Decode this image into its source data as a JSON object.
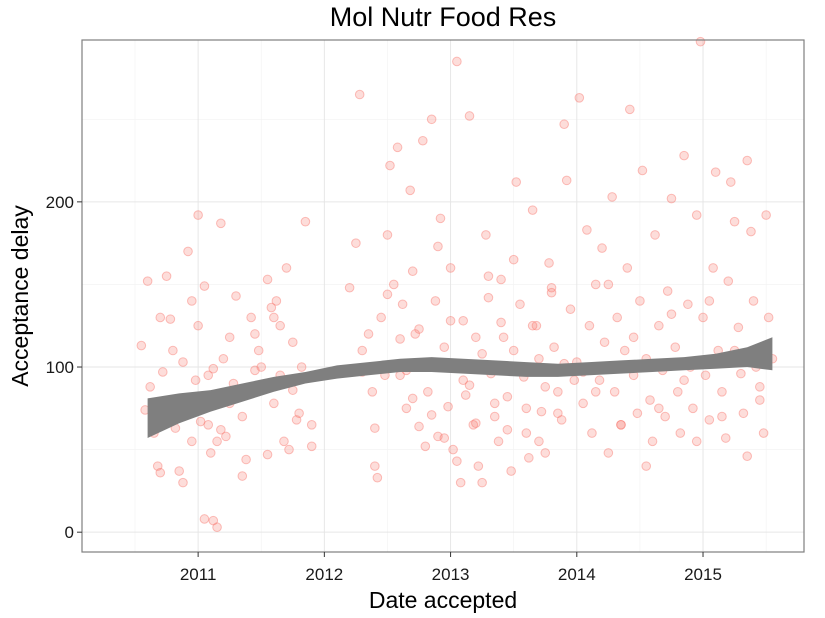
{
  "chart_data": {
    "type": "scatter",
    "title": "Mol Nutr Food Res",
    "xlabel": "Date accepted",
    "ylabel": "Acceptance delay",
    "x_ticks": [
      "2011",
      "2012",
      "2013",
      "2014",
      "2015"
    ],
    "x_tick_values": [
      2011,
      2012,
      2013,
      2014,
      2015
    ],
    "y_ticks": [
      "0",
      "100",
      "200"
    ],
    "y_tick_values": [
      0,
      100,
      200
    ],
    "xlim": [
      2010.08,
      2015.8
    ],
    "ylim": [
      -12,
      298
    ],
    "grid": true,
    "point_color": "#f8766d",
    "point_opacity": 0.25,
    "smooth_color": "#7f7f7f",
    "smooth": {
      "x": [
        2010.6,
        2010.85,
        2011.1,
        2011.35,
        2011.6,
        2011.85,
        2012.1,
        2012.35,
        2012.6,
        2012.85,
        2013.1,
        2013.35,
        2013.6,
        2013.85,
        2014.1,
        2014.35,
        2014.6,
        2014.85,
        2015.1,
        2015.35,
        2015.55
      ],
      "fit": [
        72,
        76,
        80,
        85,
        90,
        94,
        97,
        99,
        101,
        102,
        101,
        99,
        98,
        98,
        99,
        100,
        101,
        102,
        104,
        106,
        108
      ],
      "lower": [
        57,
        66,
        73,
        79,
        85,
        90,
        93,
        95,
        97,
        97,
        96,
        95,
        94,
        94,
        95,
        96,
        97,
        98,
        99,
        100,
        98
      ],
      "upper": [
        81,
        84,
        86,
        90,
        94,
        97,
        101,
        103,
        105,
        106,
        105,
        104,
        103,
        102,
        103,
        104,
        105,
        106,
        108,
        112,
        118
      ]
    },
    "series": [
      {
        "x": [
          2010.55,
          2010.6,
          2010.62,
          2010.65,
          2010.7,
          2010.72,
          2010.75,
          2010.8,
          2010.82,
          2010.85,
          2010.9,
          2010.92,
          2010.95,
          2010.98,
          2011.0,
          2011.05,
          2011.08,
          2011.12,
          2011.15,
          2011.18,
          2011.2,
          2011.25,
          2011.28,
          2011.3,
          2011.35,
          2011.4,
          2011.42,
          2011.45,
          2011.5,
          2011.55,
          2011.6,
          2011.62,
          2011.65,
          2011.7,
          2011.75,
          2011.8,
          2011.85,
          2011.9,
          2010.58,
          2010.68,
          2010.78,
          2010.88,
          2011.02,
          2011.1,
          2011.22,
          2011.32,
          2011.48,
          2011.58,
          2011.68,
          2011.78,
          2010.88,
          2010.95,
          2011.05,
          2011.12,
          2011.15,
          2011.25,
          2011.35,
          2011.45,
          2011.55,
          2011.65,
          2011.72,
          2011.82,
          2011.0,
          2011.08,
          2011.18,
          2011.38,
          2011.6,
          2011.75,
          2011.9,
          2010.7
        ],
        "y": [
          113,
          152,
          88,
          60,
          130,
          97,
          155,
          110,
          63,
          37,
          80,
          170,
          140,
          92,
          125,
          149,
          65,
          99,
          55,
          187,
          105,
          118,
          90,
          143,
          70,
          85,
          130,
          120,
          100,
          153,
          78,
          140,
          95,
          160,
          115,
          72,
          188,
          65,
          74,
          40,
          129,
          103,
          67,
          48,
          58,
          84,
          110,
          136,
          55,
          68,
          30,
          55,
          8,
          7,
          3,
          78,
          34,
          98,
          47,
          125,
          50,
          100,
          192,
          95,
          62,
          44,
          130,
          86,
          52,
          36
        ]
      },
      {
        "x": [
          2012.2,
          2012.25,
          2012.28,
          2012.3,
          2012.35,
          2012.38,
          2012.4,
          2012.42,
          2012.45,
          2012.48,
          2012.5,
          2012.52,
          2012.55,
          2012.58,
          2012.6,
          2012.62,
          2012.65,
          2012.68,
          2012.7,
          2012.72,
          2012.75,
          2012.78,
          2012.8,
          2012.82,
          2012.85,
          2012.88,
          2012.9,
          2012.92,
          2012.95,
          2012.98,
          2013.0,
          2013.02,
          2013.05,
          2013.08,
          2013.1,
          2013.12,
          2013.15,
          2013.18,
          2013.2,
          2013.22,
          2013.25,
          2013.28,
          2013.3,
          2013.32,
          2013.35,
          2013.38,
          2013.4,
          2013.42,
          2013.45,
          2013.48,
          2013.5,
          2013.52,
          2013.55,
          2013.58,
          2013.6,
          2013.62,
          2013.65,
          2013.68,
          2013.7,
          2013.72,
          2013.75,
          2013.78,
          2013.8,
          2013.82,
          2013.85,
          2013.88,
          2013.9,
          2013.92,
          2013.95,
          2013.98,
          2012.3,
          2012.4,
          2012.5,
          2012.6,
          2012.7,
          2012.8,
          2012.9,
          2013.0,
          2013.1,
          2013.2,
          2013.3,
          2013.4,
          2013.5,
          2013.6,
          2013.7,
          2013.8,
          2013.9,
          2012.65,
          2012.75,
          2012.85,
          2012.95,
          2013.05,
          2013.15,
          2013.25,
          2013.35,
          2013.45,
          2013.55,
          2013.65,
          2013.75,
          2013.85
        ],
        "y": [
          148,
          175,
          265,
          110,
          120,
          85,
          40,
          33,
          130,
          95,
          180,
          222,
          150,
          233,
          95,
          138,
          75,
          207,
          158,
          120,
          64,
          237,
          100,
          85,
          250,
          140,
          58,
          190,
          112,
          76,
          160,
          50,
          285,
          30,
          128,
          83,
          252,
          65,
          118,
          40,
          30,
          180,
          142,
          96,
          70,
          55,
          153,
          118,
          82,
          37,
          165,
          212,
          138,
          94,
          60,
          45,
          195,
          125,
          105,
          73,
          48,
          163,
          148,
          112,
          85,
          68,
          247,
          213,
          135,
          92,
          97,
          63,
          144,
          117,
          81,
          52,
          173,
          128,
          92,
          66,
          155,
          127,
          110,
          75,
          55,
          145,
          102,
          98,
          123,
          71,
          57,
          43,
          89,
          108,
          78,
          62,
          98,
          125,
          88,
          72
        ]
      },
      {
        "x": [
          2014.0,
          2014.02,
          2014.05,
          2014.08,
          2014.1,
          2014.12,
          2014.15,
          2014.18,
          2014.2,
          2014.22,
          2014.25,
          2014.28,
          2014.3,
          2014.32,
          2014.35,
          2014.38,
          2014.4,
          2014.42,
          2014.45,
          2014.48,
          2014.5,
          2014.52,
          2014.55,
          2014.58,
          2014.6,
          2014.62,
          2014.65,
          2014.68,
          2014.7,
          2014.72,
          2014.75,
          2014.78,
          2014.8,
          2014.82,
          2014.85,
          2014.88,
          2014.9,
          2014.92,
          2014.95,
          2014.98,
          2015.0,
          2015.02,
          2015.05,
          2015.08,
          2015.1,
          2015.12,
          2015.15,
          2015.18,
          2015.2,
          2015.22,
          2015.25,
          2015.28,
          2015.3,
          2015.32,
          2015.35,
          2015.38,
          2015.4,
          2015.42,
          2015.45,
          2015.48,
          2015.5,
          2015.52,
          2015.55,
          2014.05,
          2014.15,
          2014.25,
          2014.35,
          2014.45,
          2014.55,
          2014.65,
          2014.75,
          2014.85,
          2014.95,
          2015.05,
          2015.15,
          2015.25,
          2015.35,
          2015.45
        ],
        "y": [
          103,
          263,
          78,
          183,
          125,
          60,
          150,
          92,
          172,
          115,
          48,
          203,
          85,
          130,
          65,
          110,
          160,
          256,
          95,
          72,
          140,
          219,
          105,
          80,
          55,
          180,
          125,
          98,
          70,
          146,
          202,
          112,
          85,
          60,
          228,
          138,
          100,
          75,
          192,
          297,
          130,
          95,
          68,
          160,
          218,
          110,
          85,
          57,
          152,
          212,
          188,
          124,
          96,
          72,
          225,
          182,
          140,
          100,
          80,
          60,
          192,
          130,
          105,
          97,
          85,
          150,
          65,
          118,
          40,
          75,
          132,
          92,
          55,
          140,
          70,
          110,
          46,
          88
        ]
      }
    ]
  }
}
